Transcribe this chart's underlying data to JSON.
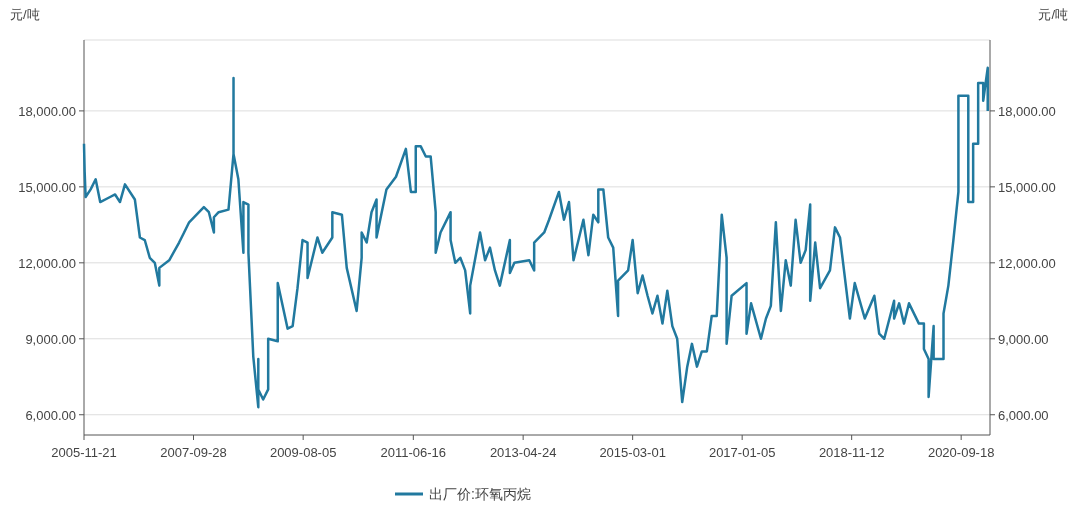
{
  "chart_data": {
    "type": "line",
    "ylabel": "元/吨",
    "y2label": "元/吨",
    "x": [
      "2005-11-21",
      "2005-11-25",
      "2005-12",
      "2006-01",
      "2006-02",
      "2006-03",
      "2006-05",
      "2006-06",
      "2006-07",
      "2006-08",
      "2006-10",
      "2006-11",
      "2006-12",
      "2007-01",
      "2007-02",
      "2007-03",
      "2007-03",
      "2007-05",
      "2007-07",
      "2007-08",
      "2007-09",
      "2007-11",
      "2007-12",
      "2008-01",
      "2008-02",
      "2008-02",
      "2008-03",
      "2008-05",
      "2008-06",
      "2008-06",
      "2008-06",
      "2008-06",
      "2008-07",
      "2008-08",
      "2008-08",
      "2008-09",
      "2008-09",
      "2008-10",
      "2008-11",
      "2008-11",
      "2008-11",
      "2008-12",
      "2009-01",
      "2009-01",
      "2009-03",
      "2009-03",
      "2009-05",
      "2009-06",
      "2009-07",
      "2009-08",
      "2009-09",
      "2009-09",
      "2009-11",
      "2009-12",
      "2010-02",
      "2010-02",
      "2010-04",
      "2010-05",
      "2010-07",
      "2010-08",
      "2010-08",
      "2010-09",
      "2010-10",
      "2010-11",
      "2010-11",
      "2011-01",
      "2011-03",
      "2011-05",
      "2011-06",
      "2011-07",
      "2011-07",
      "2011-08",
      "2011-09",
      "2011-10",
      "2011-11",
      "2011-11",
      "2011-12",
      "2012-02",
      "2012-02",
      "2012-03",
      "2012-04",
      "2012-05",
      "2012-06",
      "2012-06",
      "2012-08",
      "2012-09",
      "2012-10",
      "2012-11",
      "2012-12",
      "2013-02",
      "2013-02",
      "2013-03",
      "2013-06",
      "2013-07",
      "2013-07",
      "2013-09",
      "2013-10",
      "2013-12",
      "2013-12",
      "2014-01",
      "2014-02",
      "2014-03",
      "2014-05",
      "2014-06",
      "2014-07",
      "2014-08",
      "2014-08",
      "2014-09",
      "2014-10",
      "2014-11",
      "2014-12",
      "2014-12",
      "2015-02",
      "2015-03",
      "2015-04",
      "2015-05",
      "2015-06",
      "2015-07",
      "2015-08",
      "2015-09",
      "2015-10",
      "2015-11",
      "2015-12",
      "2016-01",
      "2016-02",
      "2016-03",
      "2016-04",
      "2016-05",
      "2016-06",
      "2016-07",
      "2016-08",
      "2016-09",
      "2016-10",
      "2016-10",
      "2016-11",
      "2017-02",
      "2017-02",
      "2017-03",
      "2017-05",
      "2017-06",
      "2017-07",
      "2017-08",
      "2017-09",
      "2017-10",
      "2017-11",
      "2017-12",
      "2018-01",
      "2018-02",
      "2018-03",
      "2018-03",
      "2018-04",
      "2018-05",
      "2018-07",
      "2018-08",
      "2018-09",
      "2018-11",
      "2018-12",
      "2019-02",
      "2019-04",
      "2019-05",
      "2019-06",
      "2019-08",
      "2019-08",
      "2019-09",
      "2019-10",
      "2019-11",
      "2020-01",
      "2020-02",
      "2020-02",
      "2020-03",
      "2020-03",
      "2020-04",
      "2020-04",
      "2020-06",
      "2020-06",
      "2020-07",
      "2020-08",
      "2020-09",
      "2020-09",
      "2020-09",
      "2020-11",
      "2020-11",
      "2020-12",
      "2020-12",
      "2021-01",
      "2021-01",
      "2021-02",
      "2021-02",
      "2021-03",
      "2021-03"
    ],
    "series": [
      {
        "name": "出厂价:环氧丙烷",
        "color": "#21799f",
        "values": [
          16700,
          15600,
          14600,
          14900,
          15300,
          14400,
          14600,
          14700,
          14400,
          15100,
          14500,
          13000,
          12900,
          12200,
          12000,
          11100,
          11800,
          12100,
          12800,
          13200,
          13600,
          14000,
          14200,
          14000,
          13200,
          13800,
          14000,
          14100,
          16300,
          19300,
          18000,
          16300,
          15300,
          12400,
          14400,
          14300,
          12400,
          8300,
          6300,
          8200,
          7000,
          6600,
          7000,
          9000,
          8900,
          11200,
          9400,
          9500,
          11000,
          12900,
          12800,
          11400,
          13000,
          12400,
          13000,
          14000,
          13900,
          11800,
          10100,
          12200,
          13200,
          12800,
          14000,
          14500,
          13000,
          14900,
          15400,
          16500,
          14800,
          14800,
          16600,
          16600,
          16200,
          16200,
          14000,
          12400,
          13200,
          14000,
          12900,
          12000,
          12200,
          11700,
          10000,
          11100,
          13200,
          12100,
          12600,
          11700,
          11100,
          12900,
          11600,
          12000,
          12100,
          11700,
          12800,
          13200,
          13700,
          14800,
          14800,
          13700,
          14400,
          12100,
          13700,
          12300,
          13900,
          13600,
          14900,
          14900,
          13000,
          12600,
          9900,
          11300,
          11700,
          12900,
          10800,
          11500,
          10700,
          10000,
          10700,
          9600,
          10900,
          9500,
          9000,
          6500,
          7900,
          8800,
          7900,
          8500,
          8500,
          9900,
          9900,
          13900,
          12200,
          8800,
          10700,
          11200,
          9200,
          10400,
          9000,
          9800,
          10300,
          13600,
          10100,
          12100,
          11100,
          13700,
          12000,
          12500,
          14300,
          10500,
          12800,
          11000,
          11700,
          13400,
          13000,
          9800,
          11200,
          9800,
          10700,
          9200,
          9000,
          10500,
          9800,
          10400,
          9600,
          10400,
          9600,
          9600,
          8600,
          8200,
          6700,
          9500,
          8200,
          8200,
          10000,
          11100,
          12900,
          14800,
          18000,
          18600,
          18600,
          14400,
          14400,
          16700,
          16700,
          19100,
          19100,
          18400,
          19700,
          18000
        ]
      }
    ],
    "xlim": [
      "2005-11-21",
      "2021-03-15"
    ],
    "xticks": [
      "2005-11-21",
      "2007-09-28",
      "2009-08-05",
      "2011-06-16",
      "2013-04-24",
      "2015-03-01",
      "2017-01-05",
      "2018-11-12",
      "2020-09-18"
    ],
    "ylim": [
      5200,
      20800
    ],
    "yticks": [
      {
        "value": 6000,
        "label": "6,000.00"
      },
      {
        "value": 9000,
        "label": "9,000.00"
      },
      {
        "value": 12000,
        "label": "12,000.00"
      },
      {
        "value": 15000,
        "label": "15,000.00"
      },
      {
        "value": 18000,
        "label": "18,000.00"
      }
    ],
    "y2lim": [
      5200,
      20800
    ],
    "y2ticks": [
      {
        "value": 6000,
        "label": "6,000.00"
      },
      {
        "value": 9000,
        "label": "9,000.00"
      },
      {
        "value": 12000,
        "label": "12,000.00"
      },
      {
        "value": 15000,
        "label": "15,000.00"
      },
      {
        "value": 18000,
        "label": "18,000.00"
      }
    ],
    "grid": "y",
    "legend": "bottom"
  }
}
